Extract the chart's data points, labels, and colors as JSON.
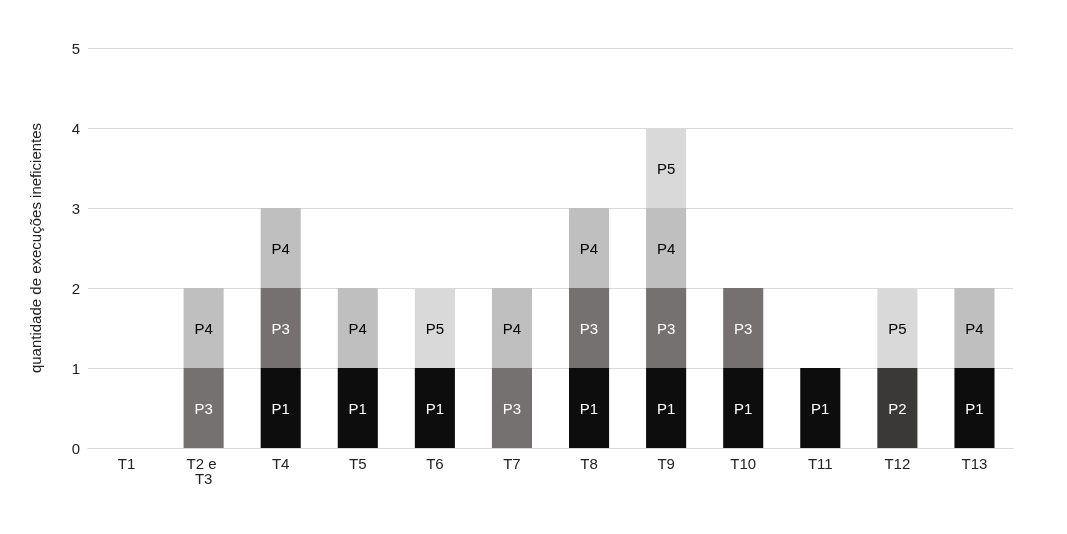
{
  "chart_data": {
    "type": "bar",
    "stacked": true,
    "ylabel": "quantidade de execuções ineficientes",
    "categories": [
      "T1",
      "T2 e T3",
      "T4",
      "T5",
      "T6",
      "T7",
      "T8",
      "T9",
      "T10",
      "T11",
      "T12",
      "T13"
    ],
    "series": [
      {
        "name": "P1",
        "color": "#0d0d0d",
        "values": [
          null,
          null,
          1,
          1,
          1,
          null,
          1,
          1,
          1,
          1,
          null,
          1
        ]
      },
      {
        "name": "P2",
        "color": "#3b3838",
        "values": [
          null,
          null,
          null,
          null,
          null,
          null,
          null,
          null,
          null,
          null,
          1,
          null
        ]
      },
      {
        "name": "P3",
        "color": "#767171",
        "values": [
          null,
          1,
          1,
          null,
          null,
          1,
          1,
          1,
          1,
          null,
          null,
          null
        ]
      },
      {
        "name": "P4",
        "color": "#bfbfbf",
        "values": [
          null,
          1,
          1,
          1,
          null,
          1,
          1,
          1,
          null,
          null,
          null,
          1
        ]
      },
      {
        "name": "P5",
        "color": "#d9d9d9",
        "values": [
          null,
          null,
          null,
          null,
          1,
          null,
          null,
          1,
          null,
          null,
          1,
          null
        ]
      }
    ],
    "ylim": [
      0,
      5
    ],
    "yticks": [
      0,
      1,
      2,
      3,
      4,
      5
    ],
    "grid": "y",
    "legend": false
  }
}
